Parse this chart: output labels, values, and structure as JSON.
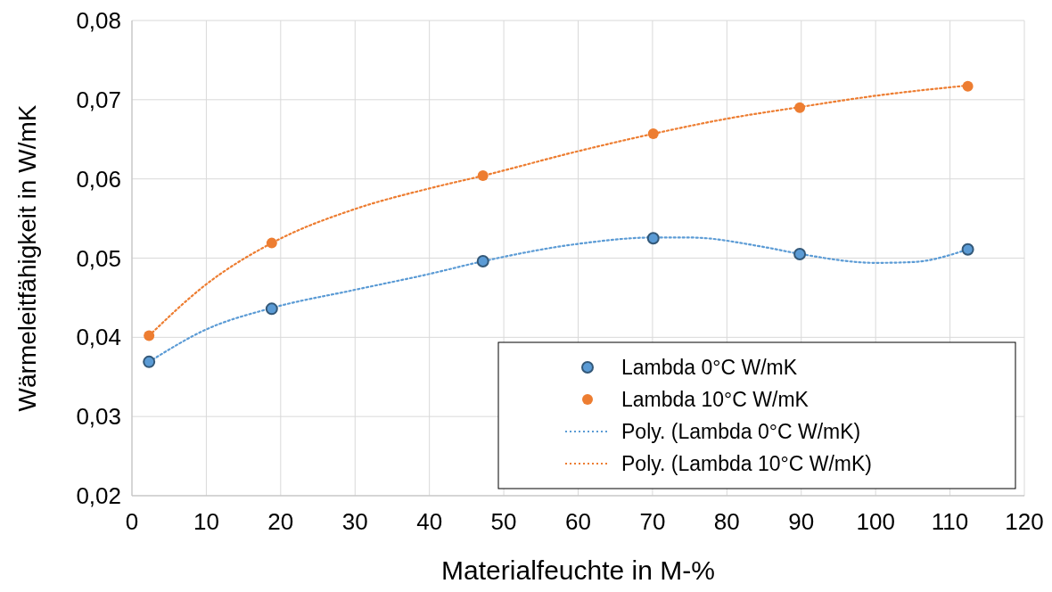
{
  "chart_data": {
    "type": "scatter",
    "xlabel": "Materialfeuchte in M-%",
    "ylabel": "Wärmeleitfähigkeit in W/mK",
    "xlim": [
      0,
      120
    ],
    "xticks": [
      0,
      10,
      20,
      30,
      40,
      50,
      60,
      70,
      80,
      90,
      100,
      110,
      120
    ],
    "ylim": [
      0.02,
      0.08
    ],
    "yticks": [
      {
        "value": 0.02,
        "label": "0,02"
      },
      {
        "value": 0.03,
        "label": "0,03"
      },
      {
        "value": 0.04,
        "label": "0,04"
      },
      {
        "value": 0.05,
        "label": "0,05"
      },
      {
        "value": 0.06,
        "label": "0,06"
      },
      {
        "value": 0.07,
        "label": "0,07"
      },
      {
        "value": 0.08,
        "label": "0,08"
      }
    ],
    "grid": true,
    "legend": "bottom right",
    "marker": "circle",
    "series": [
      {
        "name": "Lambda 0°C W/mK",
        "color": "#5b9bd5",
        "x": [
          2.3,
          18.8,
          47.2,
          70.1,
          89.8,
          112.4
        ],
        "values": [
          0.0369,
          0.0436,
          0.0496,
          0.0525,
          0.0505,
          0.0511
        ]
      },
      {
        "name": "Lambda 10°C W/mK",
        "color": "#ed7d31",
        "x": [
          2.3,
          18.8,
          47.2,
          70.1,
          89.8,
          112.4
        ],
        "values": [
          0.0402,
          0.0519,
          0.0604,
          0.0657,
          0.069,
          0.0717
        ]
      },
      {
        "name": "Poly. (Lambda 0°C W/mK)",
        "type": "line",
        "line_style": "dotted",
        "marker": "none",
        "color": "#5b9bd5",
        "x": [
          2.3,
          10,
          18.8,
          30,
          40,
          47.2,
          60,
          70.1,
          75,
          85,
          90,
          100,
          105,
          112.4
        ],
        "values": [
          0.0369,
          0.041,
          0.0437,
          0.046,
          0.048,
          0.0496,
          0.0518,
          0.0526,
          0.0526,
          0.0514,
          0.0505,
          0.0494,
          0.0495,
          0.0511
        ]
      },
      {
        "name": "Poly. (Lambda 10°C W/mK)",
        "type": "line",
        "line_style": "dotted",
        "marker": "none",
        "color": "#ed7d31",
        "x": [
          2.3,
          10,
          18.8,
          30,
          40,
          47.2,
          60,
          70.1,
          80,
          90,
          100,
          112.4
        ],
        "values": [
          0.0402,
          0.0467,
          0.0519,
          0.0562,
          0.0588,
          0.0604,
          0.0635,
          0.0657,
          0.0676,
          0.0691,
          0.0705,
          0.0718
        ]
      }
    ]
  }
}
